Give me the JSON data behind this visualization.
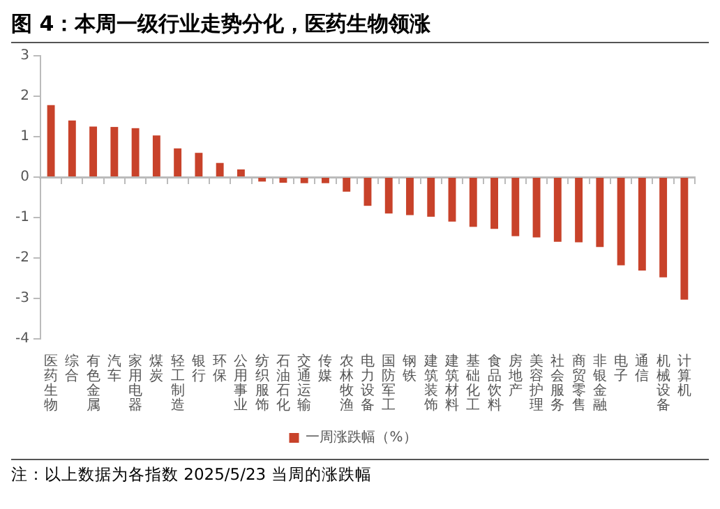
{
  "chart_data": {
    "type": "bar",
    "title": "图 4：本周一级行业走势分化，医药生物领涨",
    "categories": [
      "医药生物",
      "综合",
      "有色金属",
      "汽车",
      "家用电器",
      "煤炭",
      "轻工制造",
      "银行",
      "环保",
      "公用事业",
      "纺织服饰",
      "石油石化",
      "交通运输",
      "传媒",
      "农林牧渔",
      "电力设备",
      "国防军工",
      "钢铁",
      "建筑装饰",
      "建筑材料",
      "基础化工",
      "食品饮料",
      "房地产",
      "美容护理",
      "社会服务",
      "商贸零售",
      "非银金融",
      "电子",
      "通信",
      "机械设备",
      "计算机"
    ],
    "series": [
      {
        "name": "一周涨跌幅（%）",
        "color": "#c8422a",
        "values": [
          1.78,
          1.4,
          1.25,
          1.24,
          1.21,
          1.03,
          0.71,
          0.6,
          0.35,
          0.19,
          -0.11,
          -0.14,
          -0.15,
          -0.15,
          -0.36,
          -0.71,
          -0.9,
          -0.94,
          -0.98,
          -1.1,
          -1.23,
          -1.28,
          -1.46,
          -1.49,
          -1.6,
          -1.61,
          -1.73,
          -2.18,
          -2.31,
          -2.48,
          -3.03
        ]
      }
    ],
    "ylim": [
      -4,
      3
    ],
    "yticks": [
      -4,
      -3,
      -2,
      -1,
      0,
      1,
      2,
      3
    ],
    "legend": "bottom",
    "annotations": [
      "注：以上数据为各指数 2025/5/23 当周的涨跌幅"
    ]
  }
}
